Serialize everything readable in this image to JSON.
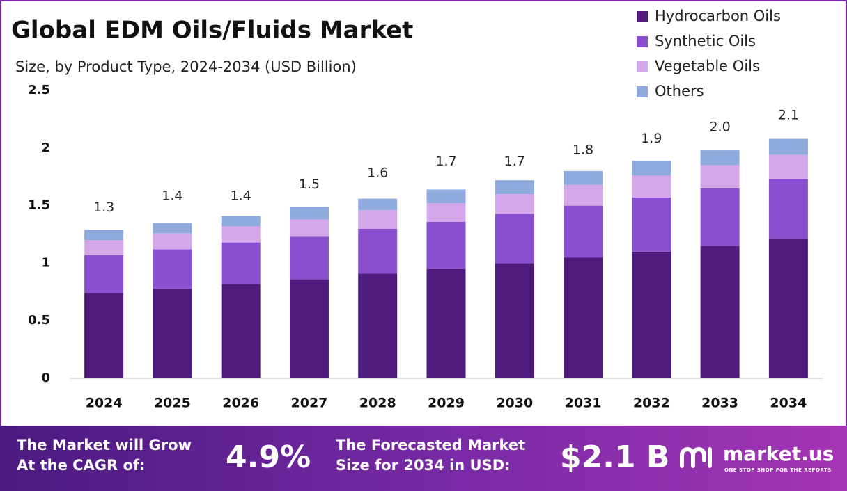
{
  "chart_data": {
    "type": "stacked_bar",
    "title": "Global EDM Oils/Fluids Market",
    "subtitle": "Size, by Product Type, 2024-2034 (USD Billion)",
    "categories": [
      "2024",
      "2025",
      "2026",
      "2027",
      "2028",
      "2029",
      "2030",
      "2031",
      "2032",
      "2033",
      "2034"
    ],
    "series": [
      {
        "name": "Hydrocarbon Oils",
        "color": "#4e1a7e",
        "values": [
          0.74,
          0.78,
          0.82,
          0.86,
          0.91,
          0.95,
          1.0,
          1.05,
          1.1,
          1.15,
          1.21
        ]
      },
      {
        "name": "Synthetic Oils",
        "color": "#8a4fcf",
        "values": [
          0.33,
          0.34,
          0.36,
          0.37,
          0.39,
          0.41,
          0.43,
          0.45,
          0.47,
          0.5,
          0.52
        ]
      },
      {
        "name": "Vegetable Oils",
        "color": "#d4a7ea",
        "values": [
          0.13,
          0.14,
          0.14,
          0.15,
          0.16,
          0.16,
          0.17,
          0.18,
          0.19,
          0.2,
          0.21
        ]
      },
      {
        "name": "Others",
        "color": "#8faadc",
        "values": [
          0.09,
          0.09,
          0.09,
          0.11,
          0.1,
          0.12,
          0.12,
          0.12,
          0.13,
          0.13,
          0.14
        ]
      }
    ],
    "totals": {
      "values": [
        1.3,
        1.4,
        1.4,
        1.5,
        1.6,
        1.7,
        1.7,
        1.8,
        1.9,
        2.0,
        2.1
      ],
      "value_labels": [
        "1.3",
        "1.4",
        "1.4",
        "1.5",
        "1.6",
        "1.7",
        "1.7",
        "1.8",
        "1.9",
        "2.0",
        "2.1"
      ]
    },
    "ylim": [
      0,
      2.5
    ],
    "yticks": [
      0,
      0.5,
      1,
      1.5,
      2,
      2.5
    ],
    "grid": false,
    "legend": "top-right"
  },
  "footer": {
    "cagr_text": [
      "The Market will Grow",
      "At the CAGR of:"
    ],
    "cagr_value": "4.9%",
    "size_text": [
      "The Forecasted Market",
      "Size for 2034 in USD:"
    ],
    "size_value": "$2.1 B",
    "brand": "market.us",
    "tagline": "ONE STOP SHOP FOR THE REPORTS"
  }
}
